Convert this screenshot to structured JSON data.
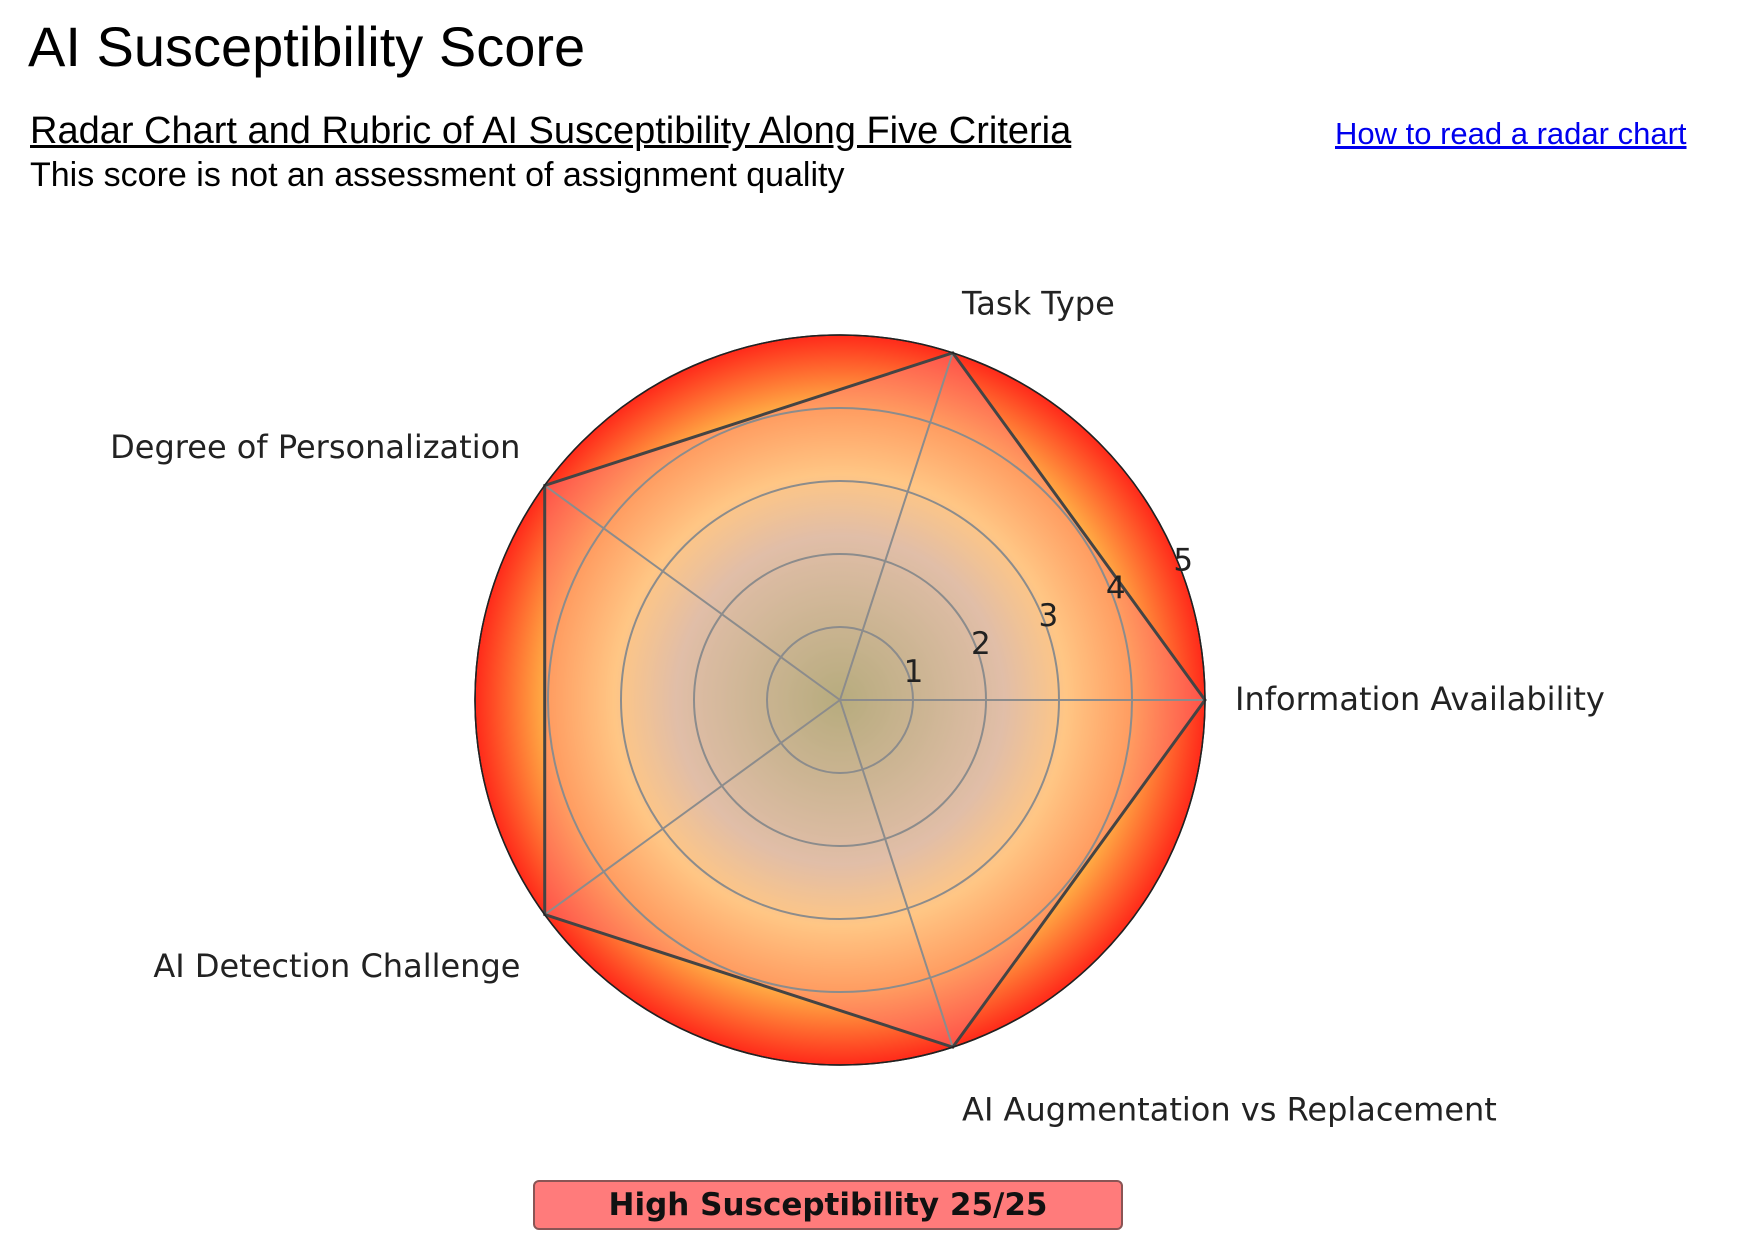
{
  "header": {
    "title": "AI Susceptibility Score",
    "section_heading": "Radar Chart and Rubric of AI Susceptibility Along Five Criteria",
    "help_link": "How to read a radar chart",
    "disclaimer": "This score is not an assessment of assignment quality"
  },
  "chart_data": {
    "type": "radar",
    "title": "",
    "axes": [
      "Information Availability",
      "Task Type",
      "Degree of Personalization",
      "AI Detection Challenge",
      "AI Augmentation vs Replacement"
    ],
    "values": [
      5,
      5,
      5,
      5,
      5
    ],
    "rmax": 5,
    "radial_ticks": [
      "1",
      "2",
      "3",
      "4",
      "5"
    ],
    "background_gradient": [
      "#7ccf7c",
      "#c8f0c8",
      "#ffff88",
      "#ffb347",
      "#ff2a1a"
    ],
    "polygon_fill": "#ff8080",
    "polygon_stroke": "#444444",
    "grid": true
  },
  "verdict": {
    "text": "High Susceptibility 25/25",
    "color": "#ff7b7b"
  }
}
